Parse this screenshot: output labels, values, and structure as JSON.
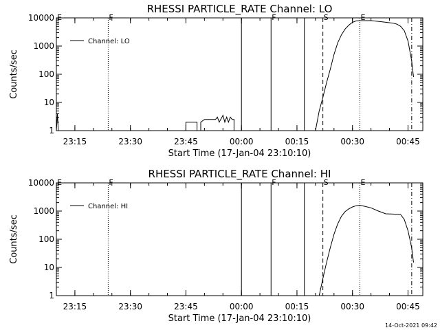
{
  "footer_timestamp": "14-Oct-2021 09:42",
  "chart_data": [
    {
      "type": "line",
      "title": "RHESSI PARTICLE_RATE Channel: LO",
      "xlabel": "Start Time (17-Jan-04 23:10:10)",
      "ylabel": "Counts/sec",
      "y_scale": "log",
      "ylim": [
        1,
        10000
      ],
      "xlim": [
        "23:10",
        "00:49"
      ],
      "x_ticks": [
        "23:15",
        "23:30",
        "23:45",
        "00:00",
        "00:15",
        "00:30",
        "00:45"
      ],
      "y_ticks": [
        {
          "value": 1,
          "label": "1"
        },
        {
          "value": 10,
          "label": "10"
        },
        {
          "value": 100,
          "label": "100"
        },
        {
          "value": 1000,
          "label": "1000"
        },
        {
          "value": 10000,
          "label": "10000"
        }
      ],
      "legend": {
        "position": "top-left",
        "entries": [
          "Channel: LO"
        ]
      },
      "markers": [
        {
          "time": "23:10",
          "label": "E",
          "style": "dotted"
        },
        {
          "time": "23:24",
          "label": "F",
          "style": "dotted"
        },
        {
          "time": "00:00",
          "label": "",
          "style": "solid"
        },
        {
          "time": "00:08",
          "label": "F",
          "style": "solid"
        },
        {
          "time": "00:17",
          "label": "",
          "style": "solid"
        },
        {
          "time": "00:22",
          "label": "S",
          "style": "dashed"
        },
        {
          "time": "00:32",
          "label": "E",
          "style": "dotted"
        },
        {
          "time": "00:46",
          "label": "",
          "style": "dashdot"
        }
      ],
      "series": [
        {
          "name": "Channel: LO",
          "segments": [
            [
              [
                "23:10",
                1
              ],
              [
                "23:10.3",
                4
              ],
              [
                "23:10.5",
                1
              ]
            ],
            [
              [
                "23:45",
                1
              ],
              [
                "23:45",
                2
              ],
              [
                "23:48",
                2
              ],
              [
                "23:48",
                1
              ],
              [
                "23:49",
                1
              ],
              [
                "23:49",
                2
              ],
              [
                "23:50",
                2.5
              ],
              [
                "23:53",
                2.5
              ],
              [
                "23:53.5",
                3
              ],
              [
                "23:54",
                2
              ],
              [
                "23:55",
                3.5
              ],
              [
                "23:55.5",
                2
              ],
              [
                "23:56",
                3
              ],
              [
                "23:56.5",
                2
              ],
              [
                "23:57",
                3
              ],
              [
                "23:57.5",
                2.5
              ],
              [
                "23:58",
                2.5
              ],
              [
                "23:58",
                1
              ],
              [
                "23:59",
                1
              ],
              [
                "23:59",
                0.5
              ]
            ],
            [
              [
                "00:20",
                1
              ],
              [
                "00:21",
                5
              ],
              [
                "00:22",
                15
              ],
              [
                "00:23",
                50
              ],
              [
                "00:24",
                150
              ],
              [
                "00:25",
                500
              ],
              [
                "00:26",
                1300
              ],
              [
                "00:27",
                2500
              ],
              [
                "00:28",
                4000
              ],
              [
                "00:29",
                5500
              ],
              [
                "00:30",
                7000
              ],
              [
                "00:31",
                7800
              ],
              [
                "00:32",
                8000
              ],
              [
                "00:33",
                8000
              ],
              [
                "00:35",
                8000
              ],
              [
                "00:37",
                7500
              ],
              [
                "00:39",
                7000
              ],
              [
                "00:41",
                6500
              ],
              [
                "00:42",
                6000
              ],
              [
                "00:43",
                5000
              ],
              [
                "00:44",
                3500
              ],
              [
                "00:45",
                1500
              ],
              [
                "00:46",
                300
              ],
              [
                "00:46.5",
                80
              ]
            ]
          ]
        }
      ]
    },
    {
      "type": "line",
      "title": "RHESSI PARTICLE_RATE Channel: HI",
      "xlabel": "Start Time (17-Jan-04 23:10:10)",
      "ylabel": "Counts/sec",
      "y_scale": "log",
      "ylim": [
        1,
        10000
      ],
      "xlim": [
        "23:10",
        "00:49"
      ],
      "x_ticks": [
        "23:15",
        "23:30",
        "23:45",
        "00:00",
        "00:15",
        "00:30",
        "00:45"
      ],
      "y_ticks": [
        {
          "value": 1,
          "label": "1"
        },
        {
          "value": 10,
          "label": "10"
        },
        {
          "value": 100,
          "label": "100"
        },
        {
          "value": 1000,
          "label": "1000"
        },
        {
          "value": 10000,
          "label": "10000"
        }
      ],
      "legend": {
        "position": "top-left",
        "entries": [
          "Channel: HI"
        ]
      },
      "markers": [
        {
          "time": "23:10",
          "label": "E",
          "style": "dotted"
        },
        {
          "time": "23:24",
          "label": "F",
          "style": "dotted"
        },
        {
          "time": "00:00",
          "label": "",
          "style": "solid"
        },
        {
          "time": "00:08",
          "label": "F",
          "style": "solid"
        },
        {
          "time": "00:17",
          "label": "",
          "style": "solid"
        },
        {
          "time": "00:22",
          "label": "S",
          "style": "dashed"
        },
        {
          "time": "00:32",
          "label": "E",
          "style": "dotted"
        },
        {
          "time": "00:46",
          "label": "",
          "style": "dashdot"
        }
      ],
      "series": [
        {
          "name": "Channel: HI",
          "segments": [
            [
              [
                "00:21",
                1
              ],
              [
                "00:22",
                4
              ],
              [
                "00:23",
                15
              ],
              [
                "00:24",
                50
              ],
              [
                "00:25",
                150
              ],
              [
                "00:26",
                350
              ],
              [
                "00:27",
                650
              ],
              [
                "00:28",
                950
              ],
              [
                "00:29",
                1200
              ],
              [
                "00:30",
                1400
              ],
              [
                "00:31",
                1550
              ],
              [
                "00:32",
                1600
              ],
              [
                "00:33",
                1500
              ],
              [
                "00:35",
                1300
              ],
              [
                "00:37",
                1000
              ],
              [
                "00:39",
                800
              ],
              [
                "00:41",
                780
              ],
              [
                "00:43",
                750
              ],
              [
                "00:44",
                500
              ],
              [
                "00:45",
                200
              ],
              [
                "00:46",
                50
              ],
              [
                "00:46.5",
                15
              ]
            ]
          ]
        }
      ]
    }
  ]
}
